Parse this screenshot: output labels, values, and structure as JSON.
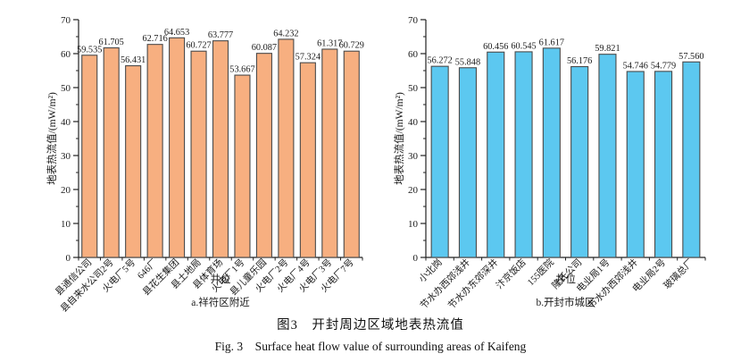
{
  "figure": {
    "caption_zh": "图3　开封周边区域地表热流值",
    "caption_en": "Fig. 3　Surface heat flow value of surrounding areas of Kaifeng"
  },
  "colors": {
    "bar_fill_a": "#f7af80",
    "bar_fill_b": "#5cc8f0",
    "bar_stroke": "#4a4a4a",
    "axis": "#222222",
    "text": "#1a1a1a"
  },
  "chart_data": [
    {
      "type": "bar",
      "title": "a.祥符区附近",
      "xlabel": "井位",
      "ylabel": "地表热流值/(mW/m²)",
      "ylim": [
        0,
        70
      ],
      "ytick_interval": 10,
      "minor_tick_interval": 5,
      "grid": false,
      "legend": "none",
      "bar_color": "#f7af80",
      "categories": [
        "县通信公司",
        "县自来水公司2号",
        "火电厂5号",
        "646厂",
        "县花生集团",
        "县土地局",
        "县体育场",
        "火电厂1号",
        "县儿童乐园",
        "火电厂2号",
        "火电厂4号",
        "火电厂3号",
        "火电厂7号"
      ],
      "values": [
        59.535,
        61.705,
        56.431,
        62.716,
        64.653,
        60.727,
        63.777,
        53.667,
        60.087,
        64.232,
        57.324,
        61.317,
        60.729
      ],
      "value_labels": [
        "59.535",
        "61.705",
        "56.431",
        "62.716",
        "64.653",
        "60.727",
        "63.777",
        "53.667",
        "60.087",
        "64.232",
        "57.324",
        "61.317",
        "60.729"
      ]
    },
    {
      "type": "bar",
      "title": "b.开封市城区",
      "xlabel": "井位",
      "ylabel": "地表热流值/(mW/m²)",
      "ylim": [
        0,
        70
      ],
      "ytick_interval": 10,
      "minor_tick_interval": 5,
      "grid": false,
      "legend": "none",
      "bar_color": "#5cc8f0",
      "categories": [
        "小北岗",
        "节水办西郊浅井",
        "节水办东郊深井",
        "汴京饭店",
        "155医院",
        "隆氏公司",
        "电业局1号",
        "节水办西郊浅井",
        "电业局2号",
        "玻璃总厂"
      ],
      "values": [
        56.272,
        55.848,
        60.456,
        60.545,
        61.617,
        56.176,
        59.821,
        54.746,
        54.779,
        57.56
      ],
      "value_labels": [
        "56.272",
        "55.848",
        "60.456",
        "60.545",
        "61.617",
        "56.176",
        "59.821",
        "54.746",
        "54.779",
        "57.560"
      ]
    }
  ]
}
